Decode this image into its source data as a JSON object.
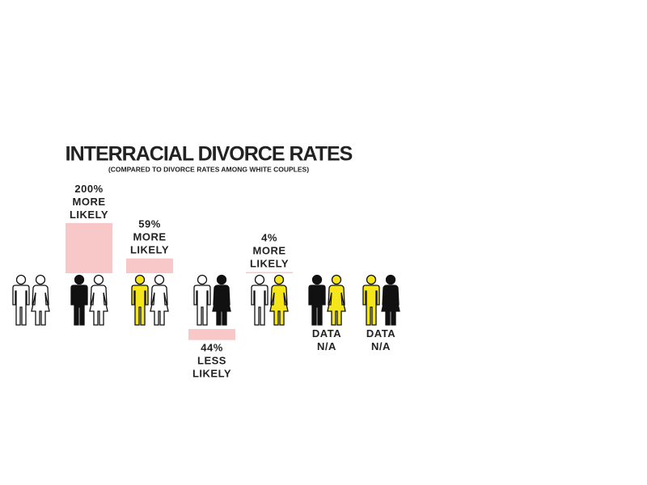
{
  "chart_data": {
    "type": "bar",
    "title": "INTERRACIAL DIVORCE RATES",
    "subtitle": "(COMPARED TO DIVORCE RATES AMONG WHITE COUPLES)",
    "categories": [
      null,
      null,
      null,
      null,
      null,
      null,
      null
    ],
    "values": [
      null,
      200,
      59,
      -44,
      4,
      null,
      null
    ],
    "value_labels": [
      null,
      "200% MORE LIKELY",
      "59% MORE LIKELY",
      "44% LESS LIKELY",
      "4% MORE LIKELY",
      "DATA N/A",
      "DATA N/A"
    ],
    "color": "#f8c8c8",
    "pairs": [
      {
        "man_color": "#ffffff",
        "woman_color": "#ffffff"
      },
      {
        "man_color": "#111111",
        "woman_color": "#ffffff"
      },
      {
        "man_color": "#f5e51b",
        "woman_color": "#ffffff"
      },
      {
        "man_color": "#ffffff",
        "woman_color": "#111111"
      },
      {
        "man_color": "#ffffff",
        "woman_color": "#f5e51b"
      },
      {
        "man_color": "#111111",
        "woman_color": "#f5e51b"
      },
      {
        "man_color": "#f5e51b",
        "woman_color": "#111111"
      }
    ]
  }
}
